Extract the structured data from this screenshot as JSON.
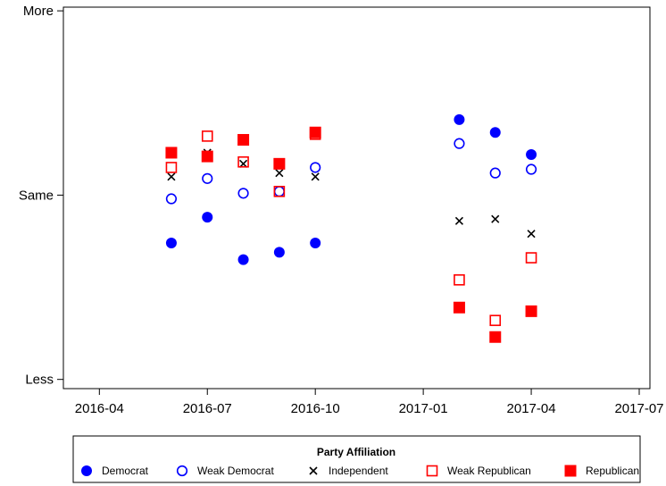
{
  "chart_data": {
    "type": "scatter",
    "title": "",
    "xlabel": "",
    "ylabel": "",
    "x_ticks": [
      "2016-04",
      "2016-07",
      "2016-10",
      "2017-01",
      "2017-04",
      "2017-07"
    ],
    "y_ticks": [
      {
        "value": -1,
        "label": "Less"
      },
      {
        "value": 0,
        "label": "Same"
      },
      {
        "value": 1,
        "label": "More"
      }
    ],
    "xlim": [
      "2016-03",
      "2017-07"
    ],
    "ylim": [
      -1.05,
      1.02
    ],
    "grid": false,
    "legend": {
      "title": "Party Affiliation",
      "placement": "bottom"
    },
    "series": [
      {
        "name": "Democrat",
        "marker": "filled-circle",
        "color": "#0000ff",
        "points": [
          {
            "x": "2016-06",
            "y": -0.26
          },
          {
            "x": "2016-07",
            "y": -0.12
          },
          {
            "x": "2016-08",
            "y": -0.35
          },
          {
            "x": "2016-09",
            "y": -0.31
          },
          {
            "x": "2016-10",
            "y": -0.26
          },
          {
            "x": "2017-02",
            "y": 0.41
          },
          {
            "x": "2017-03",
            "y": 0.34
          },
          {
            "x": "2017-04",
            "y": 0.22
          }
        ]
      },
      {
        "name": "Weak Democrat",
        "marker": "open-circle",
        "color": "#0000ff",
        "points": [
          {
            "x": "2016-06",
            "y": -0.02
          },
          {
            "x": "2016-07",
            "y": 0.09
          },
          {
            "x": "2016-08",
            "y": 0.01
          },
          {
            "x": "2016-09",
            "y": 0.02
          },
          {
            "x": "2016-10",
            "y": 0.15
          },
          {
            "x": "2017-02",
            "y": 0.28
          },
          {
            "x": "2017-03",
            "y": 0.12
          },
          {
            "x": "2017-04",
            "y": 0.14
          }
        ]
      },
      {
        "name": "Independent",
        "marker": "x",
        "color": "#000000",
        "points": [
          {
            "x": "2016-06",
            "y": 0.1
          },
          {
            "x": "2016-07",
            "y": 0.23
          },
          {
            "x": "2016-08",
            "y": 0.17
          },
          {
            "x": "2016-09",
            "y": 0.12
          },
          {
            "x": "2016-10",
            "y": 0.1
          },
          {
            "x": "2017-02",
            "y": -0.14
          },
          {
            "x": "2017-03",
            "y": -0.13
          },
          {
            "x": "2017-04",
            "y": -0.21
          }
        ]
      },
      {
        "name": "Weak Republican",
        "marker": "open-square",
        "color": "#ff0000",
        "points": [
          {
            "x": "2016-06",
            "y": 0.15
          },
          {
            "x": "2016-07",
            "y": 0.32
          },
          {
            "x": "2016-08",
            "y": 0.18
          },
          {
            "x": "2016-09",
            "y": 0.02
          },
          {
            "x": "2016-10",
            "y": 0.33
          },
          {
            "x": "2017-02",
            "y": -0.46
          },
          {
            "x": "2017-03",
            "y": -0.68
          },
          {
            "x": "2017-04",
            "y": -0.34
          }
        ]
      },
      {
        "name": "Republican",
        "marker": "filled-square",
        "color": "#ff0000",
        "points": [
          {
            "x": "2016-06",
            "y": 0.23
          },
          {
            "x": "2016-07",
            "y": 0.21
          },
          {
            "x": "2016-08",
            "y": 0.3
          },
          {
            "x": "2016-09",
            "y": 0.17
          },
          {
            "x": "2016-10",
            "y": 0.34
          },
          {
            "x": "2017-02",
            "y": -0.61
          },
          {
            "x": "2017-03",
            "y": -0.77
          },
          {
            "x": "2017-04",
            "y": -0.63
          }
        ]
      }
    ]
  }
}
